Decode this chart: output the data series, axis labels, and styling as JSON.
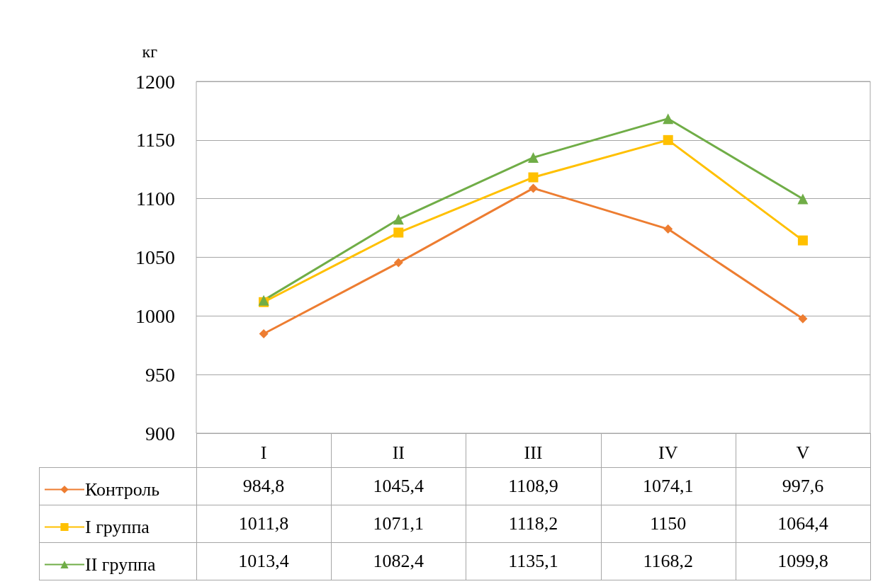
{
  "chart_data": {
    "type": "line",
    "ylabel": "кг",
    "categories": [
      "I",
      "II",
      "III",
      "IV",
      "V"
    ],
    "series": [
      {
        "name": "Контроль",
        "color": "#ed7d31",
        "marker": "diamond",
        "values": [
          984.8,
          1045.4,
          1108.9,
          1074.1,
          997.6
        ],
        "value_labels": [
          "984,8",
          "1045,4",
          "1108,9",
          "1074,1",
          "997,6"
        ]
      },
      {
        "name": "I группа",
        "color": "#ffc000",
        "marker": "square",
        "values": [
          1011.8,
          1071.1,
          1118.2,
          1150,
          1064.4
        ],
        "value_labels": [
          "1011,8",
          "1071,1",
          "1118,2",
          "1150",
          "1064,4"
        ]
      },
      {
        "name": "II группа",
        "color": "#70ad47",
        "marker": "triangle",
        "values": [
          1013.4,
          1082.4,
          1135.1,
          1168.2,
          1099.8
        ],
        "value_labels": [
          "1013,4",
          "1082,4",
          "1135,1",
          "1168,2",
          "1099,8"
        ]
      }
    ],
    "ylim": [
      900,
      1200
    ],
    "yticks": [
      900,
      950,
      1000,
      1050,
      1100,
      1150,
      1200
    ],
    "grid": "y",
    "legend": "bottom left"
  }
}
